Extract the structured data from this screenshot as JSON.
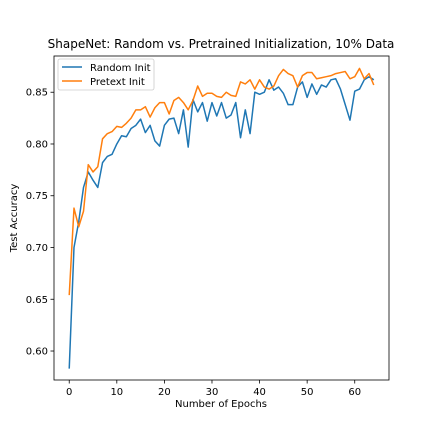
{
  "chart_data": {
    "type": "line",
    "title": "ShapeNet: Random vs. Pretrained Initialization, 10% Data",
    "xlabel": "Number of Epochs",
    "ylabel": "Test Accuracy",
    "xlim": [
      -3.2,
      67.2
    ],
    "ylim": [
      0.572,
      0.885
    ],
    "xticks": [
      0,
      10,
      20,
      30,
      40,
      50,
      60
    ],
    "yticks": [
      0.6,
      0.65,
      0.7,
      0.75,
      0.8,
      0.85
    ],
    "xtick_labels": [
      "0",
      "10",
      "20",
      "30",
      "40",
      "50",
      "60"
    ],
    "ytick_labels": [
      "0.60",
      "0.65",
      "0.70",
      "0.75",
      "0.80",
      "0.85"
    ],
    "legend_position": "upper-left",
    "grid": false,
    "series": [
      {
        "name": "Random Init",
        "color": "#1f77b4",
        "x": [
          0,
          1,
          2,
          3,
          4,
          5,
          6,
          7,
          8,
          9,
          10,
          11,
          12,
          13,
          14,
          15,
          16,
          17,
          18,
          19,
          20,
          21,
          22,
          23,
          24,
          25,
          26,
          27,
          28,
          29,
          30,
          31,
          32,
          33,
          34,
          35,
          36,
          37,
          38,
          39,
          40,
          41,
          42,
          43,
          44,
          45,
          46,
          47,
          48,
          49,
          50,
          51,
          52,
          53,
          54,
          55,
          56,
          57,
          58,
          59,
          60,
          61,
          62,
          63,
          64
        ],
        "values": [
          0.583,
          0.7,
          0.725,
          0.758,
          0.773,
          0.765,
          0.758,
          0.782,
          0.788,
          0.79,
          0.8,
          0.808,
          0.807,
          0.815,
          0.818,
          0.824,
          0.811,
          0.818,
          0.803,
          0.798,
          0.818,
          0.824,
          0.825,
          0.81,
          0.833,
          0.797,
          0.843,
          0.831,
          0.84,
          0.822,
          0.84,
          0.827,
          0.84,
          0.825,
          0.828,
          0.84,
          0.806,
          0.833,
          0.81,
          0.85,
          0.848,
          0.85,
          0.862,
          0.852,
          0.855,
          0.849,
          0.838,
          0.838,
          0.855,
          0.86,
          0.845,
          0.858,
          0.848,
          0.857,
          0.855,
          0.862,
          0.863,
          0.853,
          0.838,
          0.823,
          0.851,
          0.853,
          0.862,
          0.865,
          0.862
        ]
      },
      {
        "name": "Pretext Init",
        "color": "#ff7f0e",
        "x": [
          0,
          1,
          2,
          3,
          4,
          5,
          6,
          7,
          8,
          9,
          10,
          11,
          12,
          13,
          14,
          15,
          16,
          17,
          18,
          19,
          20,
          21,
          22,
          23,
          24,
          25,
          26,
          27,
          28,
          29,
          30,
          31,
          32,
          33,
          34,
          35,
          36,
          37,
          38,
          39,
          40,
          41,
          42,
          43,
          44,
          45,
          46,
          47,
          48,
          49,
          50,
          51,
          52,
          53,
          54,
          55,
          56,
          57,
          58,
          59,
          60,
          61,
          62,
          63,
          64
        ],
        "values": [
          0.654,
          0.738,
          0.72,
          0.735,
          0.78,
          0.773,
          0.778,
          0.805,
          0.81,
          0.812,
          0.817,
          0.816,
          0.82,
          0.825,
          0.833,
          0.833,
          0.836,
          0.826,
          0.835,
          0.84,
          0.84,
          0.829,
          0.842,
          0.845,
          0.84,
          0.833,
          0.842,
          0.856,
          0.846,
          0.849,
          0.849,
          0.846,
          0.845,
          0.85,
          0.847,
          0.846,
          0.86,
          0.858,
          0.862,
          0.853,
          0.862,
          0.855,
          0.853,
          0.856,
          0.866,
          0.872,
          0.868,
          0.866,
          0.855,
          0.866,
          0.869,
          0.869,
          0.863,
          0.864,
          0.865,
          0.866,
          0.868,
          0.869,
          0.87,
          0.863,
          0.865,
          0.873,
          0.863,
          0.868,
          0.857
        ]
      }
    ]
  }
}
